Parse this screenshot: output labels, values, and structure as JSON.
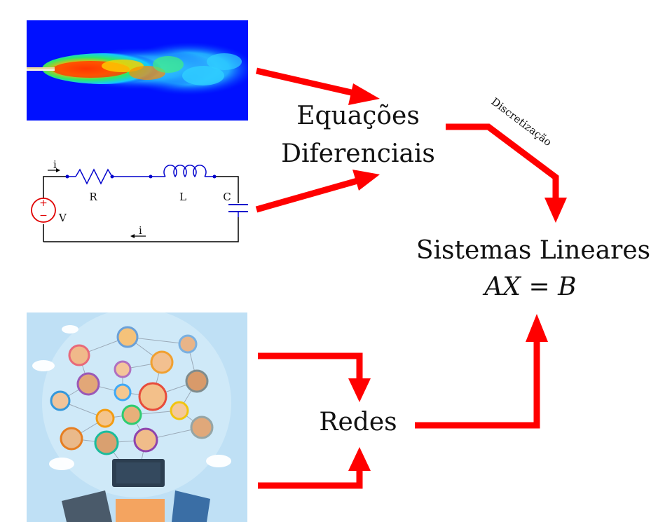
{
  "nodes": {
    "equacoes_line1": "Equações",
    "equacoes_line2": "Diferenciais",
    "sistemas_line1": "Sistemas Lineares",
    "sistemas_line2": "AX = B",
    "redes": "Redes"
  },
  "edges": {
    "discretizacao": "Discretização"
  },
  "circuit": {
    "current_top": "i",
    "current_bottom": "i",
    "resistor": "R",
    "inductor": "L",
    "capacitor": "C",
    "source": "V",
    "plus": "+",
    "minus": "−"
  },
  "colors": {
    "arrow": "#ff0000",
    "circuit_wire": "#000000",
    "circuit_component": "#0000cc",
    "source_ring": "#e00000",
    "flow_background": "#0010ff",
    "network_background": "#bfe0f5"
  },
  "images": {
    "flow": "fluid-jet-simulation",
    "network": "social-network-illustration"
  }
}
